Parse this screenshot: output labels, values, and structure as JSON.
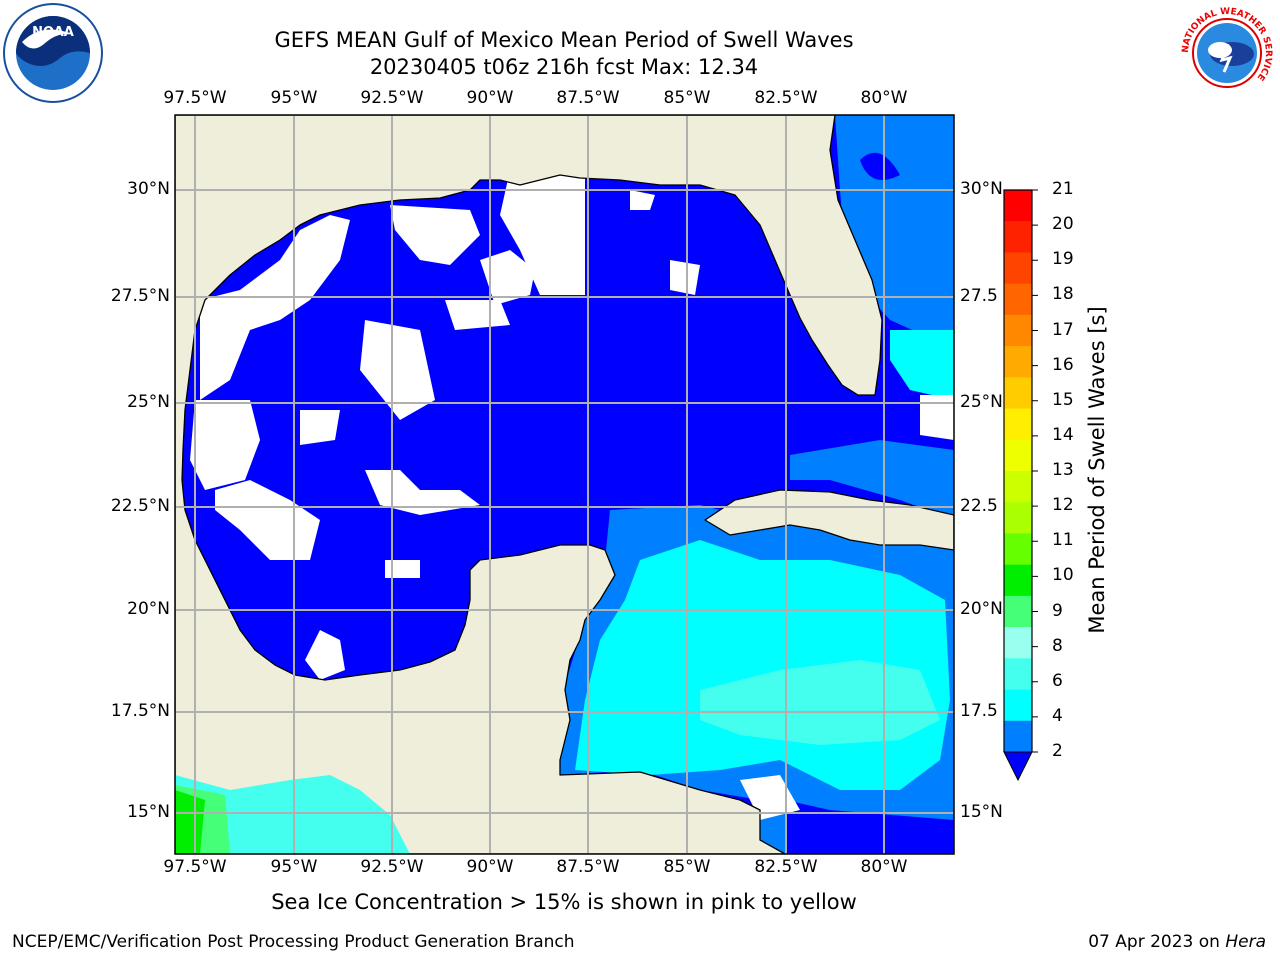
{
  "title_line1": "GEFS MEAN Gulf of Mexico Mean Period of Swell Waves",
  "title_line2": "20230405 t06z 216h fcst   Max: 12.34",
  "lon_ticks": [
    "97.5°W",
    "95°W",
    "92.5°W",
    "90°W",
    "87.5°W",
    "85°W",
    "82.5°W",
    "80°W"
  ],
  "lat_ticks_left": [
    "30°N",
    "27.5°N",
    "25°N",
    "22.5°N",
    "20°N",
    "17.5°N",
    "15°N"
  ],
  "lat_ticks_right": [
    "30°N",
    "27.5",
    "25°N",
    "22.5",
    "20°N",
    "17.5",
    "15°N"
  ],
  "colorbar": {
    "label": "Mean Period of Swell Waves [s]",
    "ticks": [
      "21",
      "20",
      "19",
      "18",
      "17",
      "16",
      "15",
      "14",
      "13",
      "12",
      "11",
      "10",
      "9",
      "8",
      "6",
      "4",
      "2"
    ],
    "colors": [
      "#ff0000",
      "#ff2200",
      "#ff4400",
      "#ff6600",
      "#ff8800",
      "#ffaa00",
      "#ffcc00",
      "#ffee00",
      "#eeff00",
      "#ccff00",
      "#aaff00",
      "#66ff00",
      "#00ee00",
      "#44ff77",
      "#99ffee",
      "#44ffee",
      "#00ffff",
      "#0080ff"
    ],
    "extend_color": "#0000ff"
  },
  "map": {
    "lon_range": [
      -98,
      -78.2
    ],
    "lat_range": [
      14,
      31.6
    ],
    "land_color": "#efeedb",
    "water_colors": {
      "lt2": "#0000ff",
      "2to4": "#0080ff",
      "4to6": "#00ffff",
      "6to8": "#44ffee",
      "8to9": "#99ffee"
    }
  },
  "caption": "Sea Ice Concentration > 15% is shown in pink to yellow",
  "footer_left": "NCEP/EMC/Verification Post Processing Product Generation Branch",
  "footer_right_date": "07 Apr 2023 on",
  "footer_right_host": "Hera",
  "logos": {
    "left": "NOAA",
    "right_text": "NATIONAL WEATHER SERVICE"
  }
}
